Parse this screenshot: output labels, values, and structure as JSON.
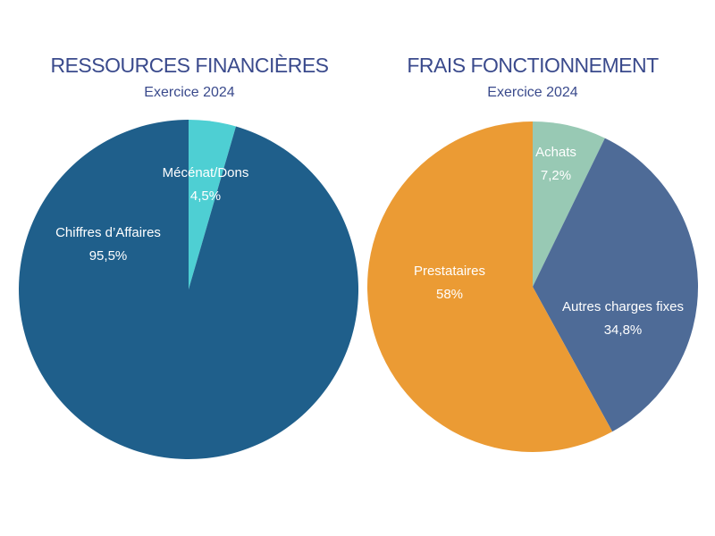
{
  "chart_data": [
    {
      "type": "pie",
      "title": "RESSOURCES FINANCIÈRES",
      "subtitle": "Exercice 2024",
      "slices": [
        {
          "name": "Mécénat/Dons",
          "value": 4.5,
          "value_label": "4,5%",
          "color": "#4ecfd3"
        },
        {
          "name": "Chiffres d’Affaires",
          "value": 95.5,
          "value_label": "95,5%",
          "color": "#1f5f8b"
        }
      ]
    },
    {
      "type": "pie",
      "title": "FRAIS FONCTIONNEMENT",
      "subtitle": "Exercice 2024",
      "slices": [
        {
          "name": "Achats",
          "value": 7.2,
          "value_label": "7,2%",
          "color": "#98c9b4"
        },
        {
          "name": "Autres charges fixes",
          "value": 34.8,
          "value_label": "34,8%",
          "color": "#4e6b97"
        },
        {
          "name": "Prestataires",
          "value": 58,
          "value_label": "58%",
          "color": "#eb9b34"
        }
      ]
    }
  ]
}
